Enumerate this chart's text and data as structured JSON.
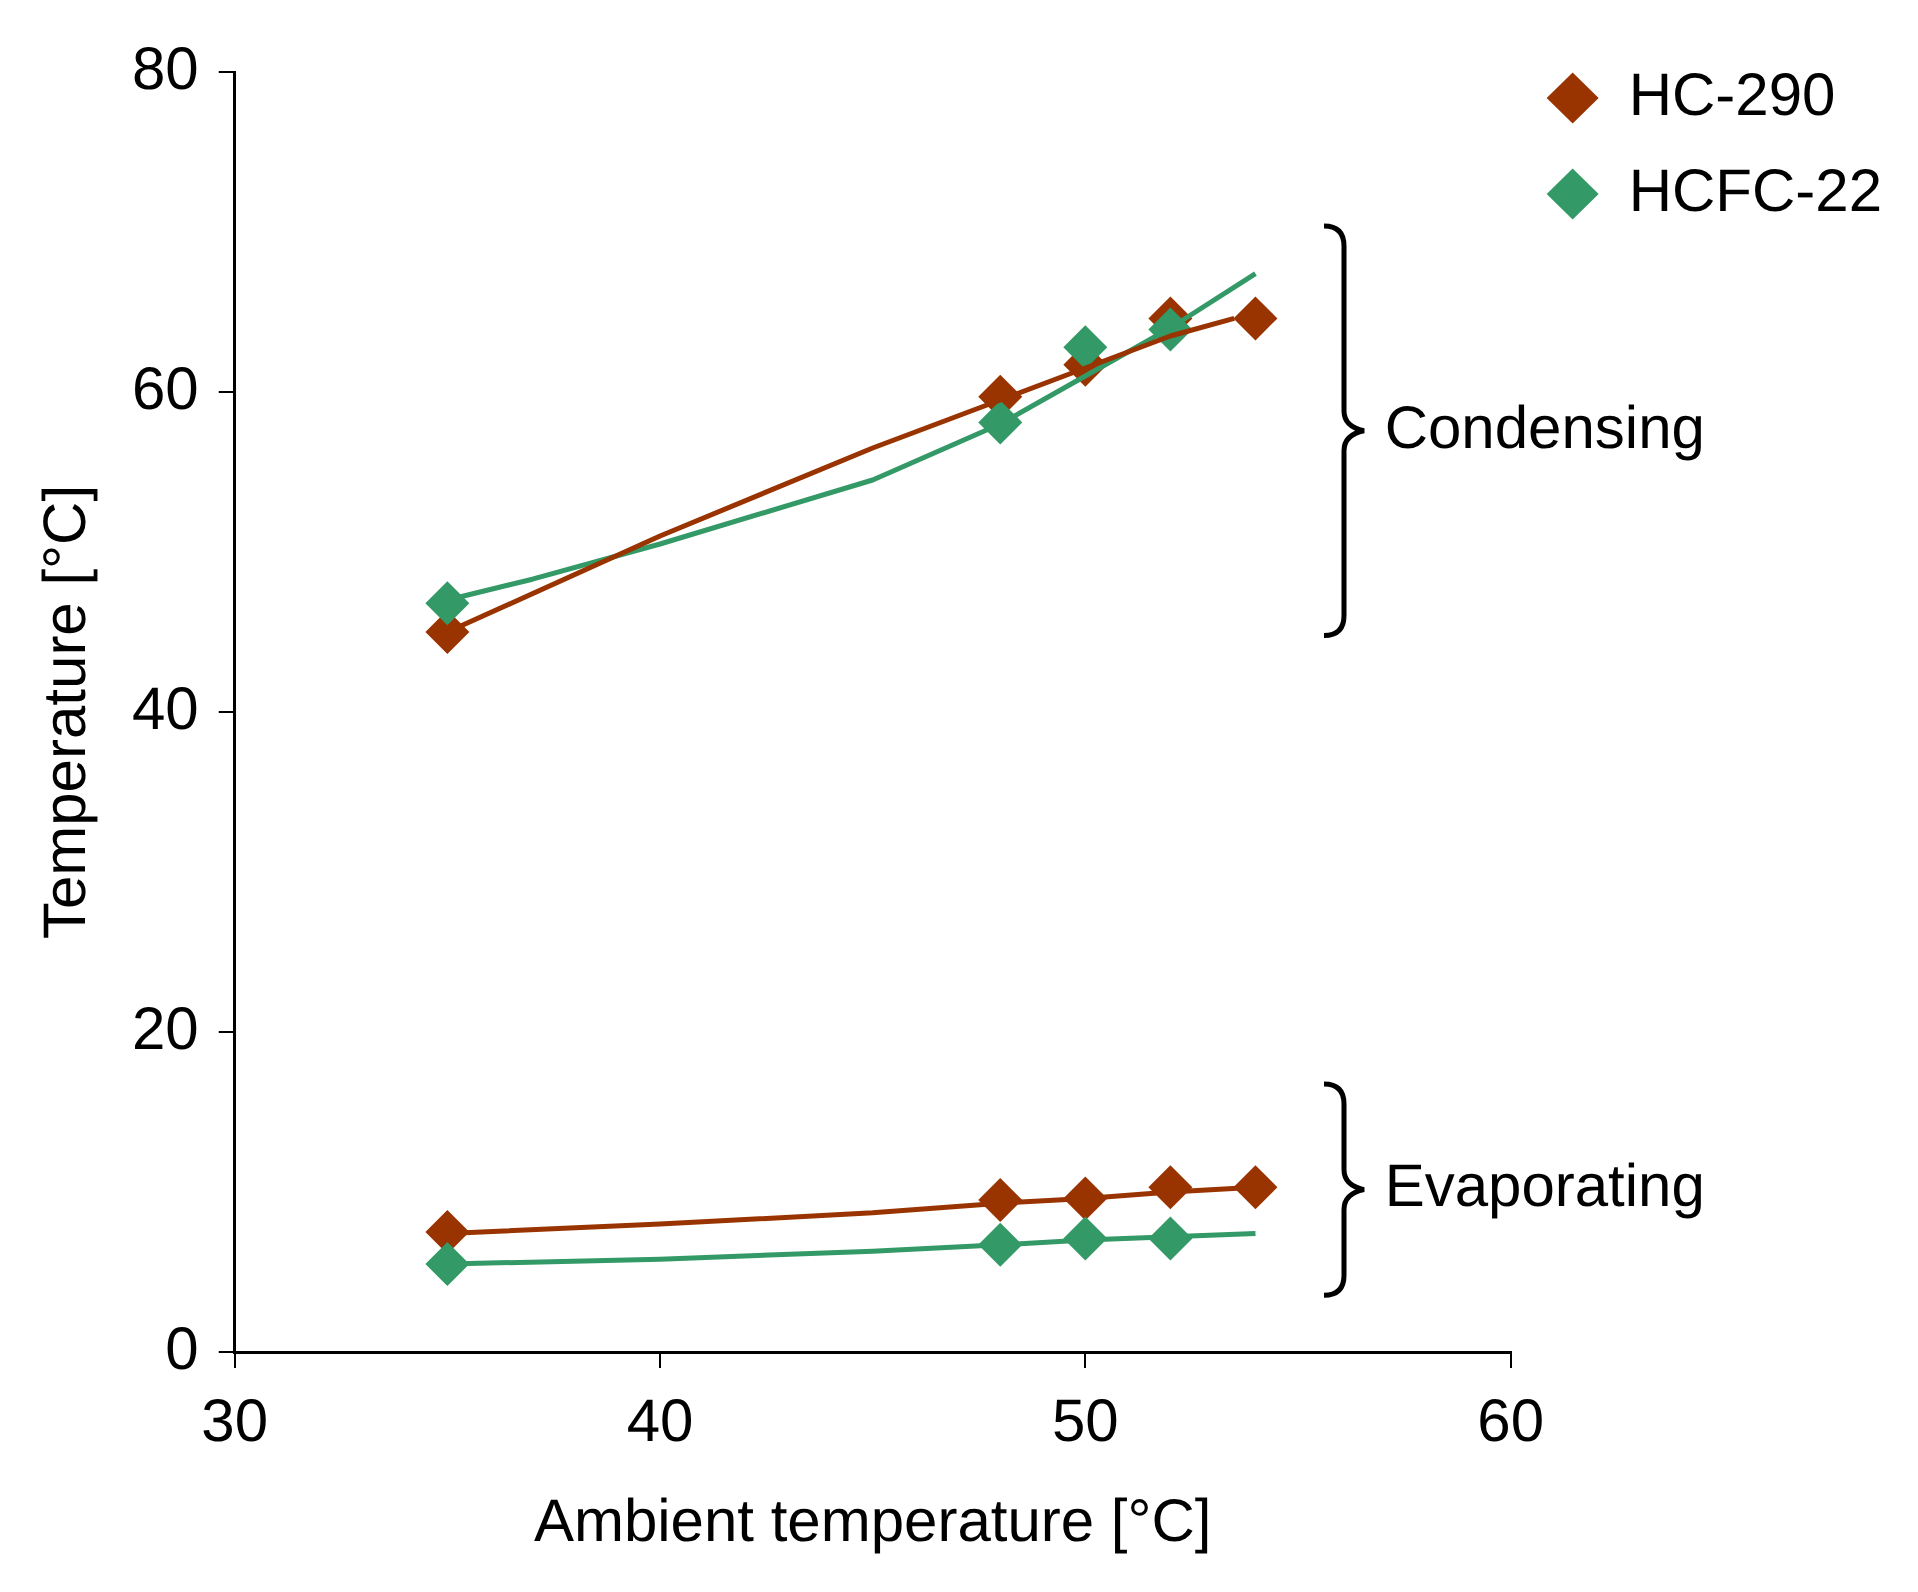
{
  "chart_data": {
    "type": "scatter",
    "xlabel": "Ambient temperature [°C]",
    "ylabel": "Temperature [°C]",
    "xlim": [
      30,
      60
    ],
    "xticks": [
      30,
      40,
      50,
      60
    ],
    "ylim": [
      0,
      80
    ],
    "yticks": [
      0,
      20,
      40,
      60,
      80
    ],
    "grid": false,
    "legend": "top right",
    "annotations": [
      "Condensing",
      "Evaporating"
    ],
    "series": [
      {
        "type": "line",
        "marker": "none",
        "color": "#993300",
        "x": [
          35,
          40,
          45,
          48,
          50,
          52,
          53.5
        ],
        "values": [
          45,
          51,
          56.5,
          59.5,
          61.5,
          63.5,
          64.6
        ]
      },
      {
        "type": "line",
        "marker": "none",
        "color": "#339966",
        "x": [
          35,
          37,
          40,
          45,
          48,
          50,
          52,
          54
        ],
        "values": [
          47,
          48.3,
          50.5,
          54.5,
          58,
          61,
          64,
          67.4
        ]
      },
      {
        "type": "line",
        "marker": "none",
        "color": "#993300",
        "x": [
          35,
          40,
          45,
          48,
          50,
          52,
          54
        ],
        "values": [
          7.4,
          8,
          8.7,
          9.3,
          9.6,
          10,
          10.3
        ]
      },
      {
        "type": "line",
        "marker": "none",
        "color": "#339966",
        "x": [
          35,
          40,
          45,
          48,
          50,
          54
        ],
        "values": [
          5.5,
          5.8,
          6.3,
          6.7,
          7,
          7.4
        ]
      },
      {
        "name": "HC-290",
        "marker": "diamond",
        "color": "#993300",
        "x": [
          35,
          48,
          50,
          52,
          54,
          35,
          48,
          50,
          52,
          54
        ],
        "values": [
          45,
          59.7,
          61.7,
          64.6,
          64.6,
          7.5,
          9.5,
          9.6,
          10.3,
          10.3
        ]
      },
      {
        "name": "HCFC-22",
        "marker": "diamond",
        "color": "#339966",
        "x": [
          35,
          48,
          50,
          52,
          35,
          48,
          50,
          52
        ],
        "values": [
          46.8,
          58.1,
          62.8,
          63.9,
          5.5,
          6.7,
          7.1,
          7.1
        ]
      }
    ]
  }
}
